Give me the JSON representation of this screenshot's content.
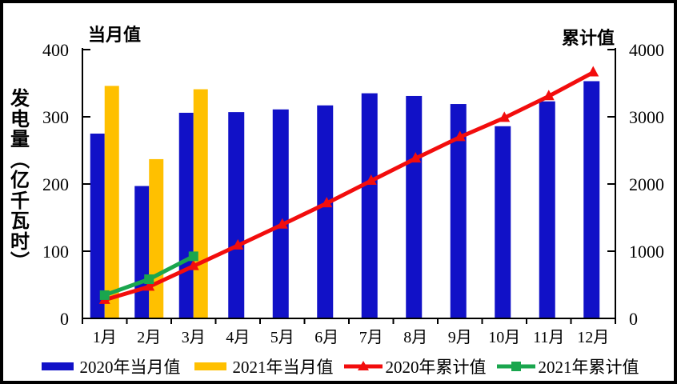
{
  "chart_data": {
    "type": "bar+line combo",
    "title": "",
    "categories": [
      "1月",
      "2月",
      "3月",
      "4月",
      "5月",
      "6月",
      "7月",
      "8月",
      "9月",
      "10月",
      "11月",
      "12月"
    ],
    "y_axis_title": "发电量（亿千瓦时）",
    "left_axis": {
      "corner_label": "当月值",
      "min": 0,
      "max": 400,
      "ticks": [
        0,
        100,
        200,
        300,
        400
      ]
    },
    "right_axis": {
      "corner_label": "累计值",
      "min": 0,
      "max": 4000,
      "ticks": [
        0,
        1000,
        2000,
        3000,
        4000
      ]
    },
    "grid": false,
    "legend_position": "bottom",
    "series": [
      {
        "name": "2020年当月值",
        "type": "bar",
        "axis": "left",
        "color": "#1111C7",
        "marker": "none",
        "values": [
          275,
          197,
          306,
          307,
          311,
          317,
          335,
          331,
          319,
          286,
          323,
          353
        ]
      },
      {
        "name": "2021年当月值",
        "type": "bar",
        "axis": "left",
        "color": "#FFC000",
        "marker": "none",
        "values": [
          346,
          237,
          341
        ]
      },
      {
        "name": "2020年累计值",
        "type": "line",
        "axis": "right",
        "color": "#F20D0D",
        "marker": "triangle",
        "values": [
          275,
          472,
          778,
          1085,
          1396,
          1713,
          2048,
          2379,
          2698,
          2984,
          3307,
          3660
        ]
      },
      {
        "name": "2021年累计值",
        "type": "line",
        "axis": "right",
        "color": "#1AA64E",
        "marker": "square",
        "values": [
          346,
          583,
          924
        ]
      }
    ]
  }
}
